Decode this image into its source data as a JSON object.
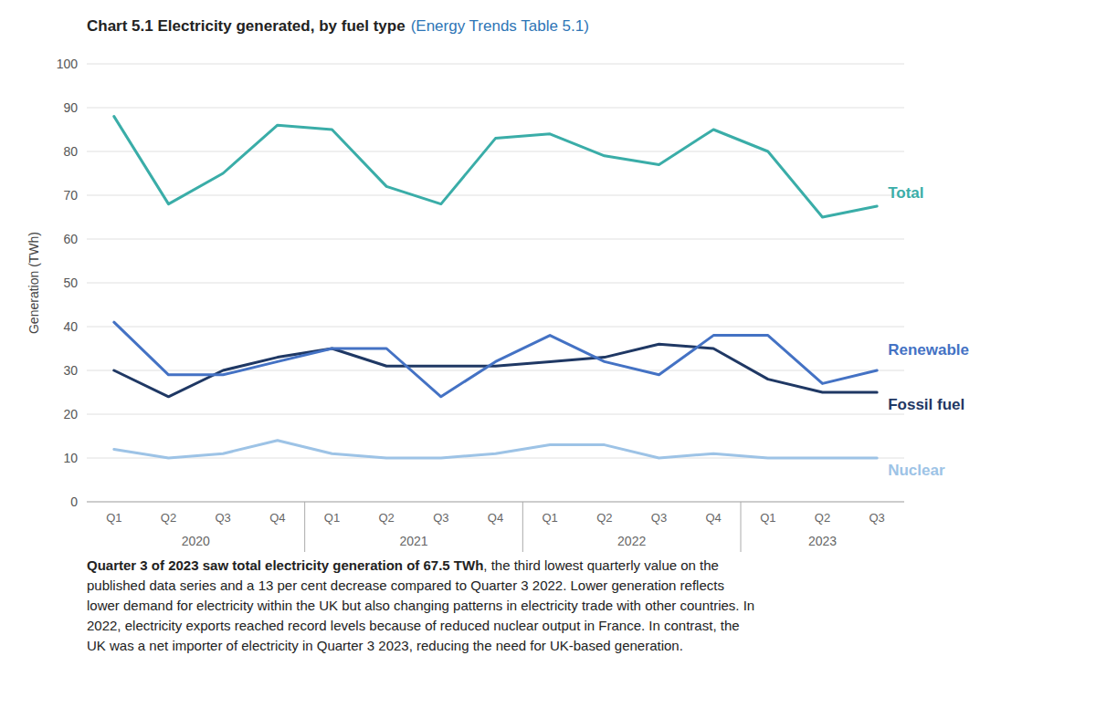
{
  "chart_data": {
    "type": "line",
    "title": "Chart 5.1 Electricity generated, by fuel type",
    "subtitle": "(Energy Trends Table 5.1)",
    "y_label": "Generation (TWh)",
    "categories": [
      "Q1",
      "Q2",
      "Q3",
      "Q4",
      "Q1",
      "Q2",
      "Q3",
      "Q4",
      "Q1",
      "Q2",
      "Q3",
      "Q4",
      "Q1",
      "Q2",
      "Q3"
    ],
    "category_groups": [
      {
        "label": "2020",
        "count": 4
      },
      {
        "label": "2021",
        "count": 4
      },
      {
        "label": "2022",
        "count": 4
      },
      {
        "label": "2023",
        "count": 3
      }
    ],
    "series": [
      {
        "name": "Total",
        "color": "#3aada8",
        "values": [
          88,
          68,
          75,
          86,
          85,
          72,
          68,
          83,
          84,
          79,
          77,
          85,
          80,
          65,
          67.5
        ]
      },
      {
        "name": "Renewable",
        "color": "#4472c4",
        "values": [
          41,
          29,
          29,
          32,
          35,
          35,
          24,
          32,
          38,
          32,
          29,
          38,
          38,
          27,
          30
        ]
      },
      {
        "name": "Fossil fuel",
        "color": "#1f3864",
        "values": [
          30,
          24,
          30,
          33,
          35,
          31,
          31,
          31,
          32,
          33,
          36,
          35,
          28,
          25,
          25
        ]
      },
      {
        "name": "Nuclear",
        "color": "#9dc3e6",
        "values": [
          12,
          10,
          11,
          14,
          11,
          10,
          10,
          11,
          13,
          13,
          10,
          11,
          10,
          10,
          10
        ]
      }
    ],
    "ylim": [
      0,
      100
    ],
    "yticks": [
      0,
      10,
      20,
      30,
      40,
      50,
      60,
      70,
      80,
      90,
      100
    ],
    "grid": true,
    "annotations": [
      "Quarter 3 of 2023 saw total electricity generation of 67.5 TWh",
      ", the third lowest quarterly value on the",
      "published data series and a 13 per cent decrease compared to Quarter 3 2022. Lower generation reflects",
      "lower demand for electricity within the UK but also changing patterns in electricity trade with other countries. In",
      "2022, electricity exports reached record levels because of reduced nuclear output in France. In contrast, the",
      "UK was a net importer of electricity in Quarter 3 2023, reducing the need for UK-based generation."
    ]
  }
}
